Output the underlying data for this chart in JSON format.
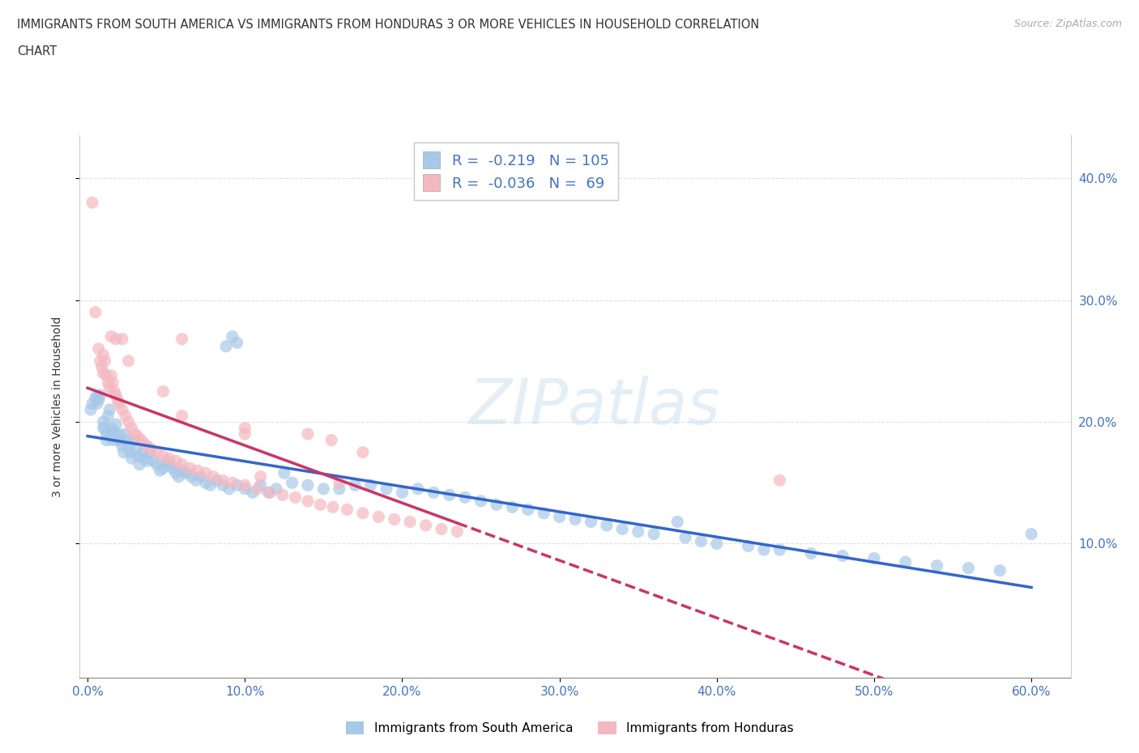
{
  "title_line1": "IMMIGRANTS FROM SOUTH AMERICA VS IMMIGRANTS FROM HONDURAS 3 OR MORE VEHICLES IN HOUSEHOLD CORRELATION",
  "title_line2": "CHART",
  "source": "Source: ZipAtlas.com",
  "ylabel": "3 or more Vehicles in Household",
  "xlim": [
    -0.005,
    0.625
  ],
  "ylim": [
    -0.01,
    0.435
  ],
  "xtick_positions": [
    0.0,
    0.1,
    0.2,
    0.3,
    0.4,
    0.5,
    0.6
  ],
  "xtick_labels": [
    "0.0%",
    "10.0%",
    "20.0%",
    "30.0%",
    "40.0%",
    "50.0%",
    "60.0%"
  ],
  "left_ytick_positions": [
    0.1,
    0.2,
    0.3,
    0.4
  ],
  "left_ytick_labels": [],
  "right_ytick_positions": [
    0.1,
    0.2,
    0.3,
    0.4
  ],
  "right_ytick_labels": [
    "10.0%",
    "20.0%",
    "30.0%",
    "40.0%"
  ],
  "blue_color": "#a8c8e8",
  "pink_color": "#f4b8c0",
  "blue_line_color": "#3366cc",
  "pink_line_color": "#cc3366",
  "blue_R": -0.219,
  "blue_N": 105,
  "pink_R": -0.036,
  "pink_N": 69,
  "legend_label_blue": "Immigrants from South America",
  "legend_label_pink": "Immigrants from Honduras",
  "watermark": "ZIPatlas",
  "grid_color": "#e0e0e0",
  "background_color": "#ffffff",
  "blue_x": [
    0.002,
    0.003,
    0.005,
    0.006,
    0.006,
    0.007,
    0.008,
    0.01,
    0.01,
    0.011,
    0.012,
    0.012,
    0.013,
    0.014,
    0.015,
    0.015,
    0.016,
    0.017,
    0.018,
    0.019,
    0.02,
    0.021,
    0.022,
    0.023,
    0.024,
    0.025,
    0.026,
    0.027,
    0.028,
    0.03,
    0.031,
    0.032,
    0.033,
    0.035,
    0.036,
    0.038,
    0.04,
    0.042,
    0.044,
    0.046,
    0.048,
    0.05,
    0.052,
    0.054,
    0.056,
    0.058,
    0.06,
    0.063,
    0.066,
    0.069,
    0.072,
    0.075,
    0.078,
    0.082,
    0.086,
    0.09,
    0.095,
    0.1,
    0.105,
    0.11,
    0.115,
    0.12,
    0.125,
    0.13,
    0.14,
    0.15,
    0.16,
    0.17,
    0.18,
    0.19,
    0.2,
    0.21,
    0.22,
    0.23,
    0.24,
    0.25,
    0.26,
    0.27,
    0.28,
    0.29,
    0.3,
    0.31,
    0.32,
    0.33,
    0.34,
    0.35,
    0.36,
    0.38,
    0.39,
    0.4,
    0.42,
    0.44,
    0.46,
    0.48,
    0.5,
    0.52,
    0.54,
    0.56,
    0.58,
    0.6,
    0.43,
    0.375,
    0.095,
    0.092,
    0.088
  ],
  "blue_y": [
    0.21,
    0.215,
    0.22,
    0.22,
    0.215,
    0.218,
    0.222,
    0.195,
    0.2,
    0.195,
    0.19,
    0.185,
    0.205,
    0.21,
    0.195,
    0.19,
    0.185,
    0.192,
    0.198,
    0.185,
    0.19,
    0.185,
    0.18,
    0.175,
    0.19,
    0.185,
    0.18,
    0.175,
    0.17,
    0.185,
    0.178,
    0.172,
    0.165,
    0.175,
    0.17,
    0.168,
    0.175,
    0.168,
    0.165,
    0.16,
    0.162,
    0.168,
    0.165,
    0.162,
    0.158,
    0.155,
    0.16,
    0.158,
    0.155,
    0.152,
    0.155,
    0.15,
    0.148,
    0.152,
    0.148,
    0.145,
    0.148,
    0.145,
    0.142,
    0.148,
    0.142,
    0.145,
    0.158,
    0.15,
    0.148,
    0.145,
    0.145,
    0.148,
    0.148,
    0.145,
    0.142,
    0.145,
    0.142,
    0.14,
    0.138,
    0.135,
    0.132,
    0.13,
    0.128,
    0.125,
    0.122,
    0.12,
    0.118,
    0.115,
    0.112,
    0.11,
    0.108,
    0.105,
    0.102,
    0.1,
    0.098,
    0.095,
    0.092,
    0.09,
    0.088,
    0.085,
    0.082,
    0.08,
    0.078,
    0.108,
    0.095,
    0.118,
    0.265,
    0.27,
    0.262
  ],
  "pink_x": [
    0.003,
    0.005,
    0.007,
    0.008,
    0.009,
    0.01,
    0.01,
    0.011,
    0.012,
    0.013,
    0.014,
    0.015,
    0.016,
    0.017,
    0.018,
    0.019,
    0.02,
    0.022,
    0.024,
    0.026,
    0.028,
    0.03,
    0.032,
    0.034,
    0.036,
    0.038,
    0.04,
    0.044,
    0.048,
    0.052,
    0.056,
    0.06,
    0.065,
    0.07,
    0.075,
    0.08,
    0.086,
    0.092,
    0.1,
    0.108,
    0.116,
    0.124,
    0.132,
    0.14,
    0.148,
    0.156,
    0.165,
    0.175,
    0.185,
    0.195,
    0.205,
    0.215,
    0.225,
    0.235,
    0.015,
    0.018,
    0.022,
    0.026,
    0.048,
    0.06,
    0.06,
    0.1,
    0.1,
    0.14,
    0.175,
    0.44,
    0.155,
    0.16,
    0.11
  ],
  "pink_y": [
    0.38,
    0.29,
    0.26,
    0.25,
    0.245,
    0.255,
    0.24,
    0.25,
    0.238,
    0.232,
    0.228,
    0.238,
    0.232,
    0.225,
    0.222,
    0.218,
    0.215,
    0.21,
    0.205,
    0.2,
    0.195,
    0.19,
    0.188,
    0.185,
    0.182,
    0.18,
    0.178,
    0.175,
    0.172,
    0.17,
    0.168,
    0.165,
    0.162,
    0.16,
    0.158,
    0.155,
    0.152,
    0.15,
    0.148,
    0.145,
    0.142,
    0.14,
    0.138,
    0.135,
    0.132,
    0.13,
    0.128,
    0.125,
    0.122,
    0.12,
    0.118,
    0.115,
    0.112,
    0.11,
    0.27,
    0.268,
    0.268,
    0.25,
    0.225,
    0.268,
    0.205,
    0.195,
    0.19,
    0.19,
    0.175,
    0.152,
    0.185,
    0.15,
    0.155
  ]
}
